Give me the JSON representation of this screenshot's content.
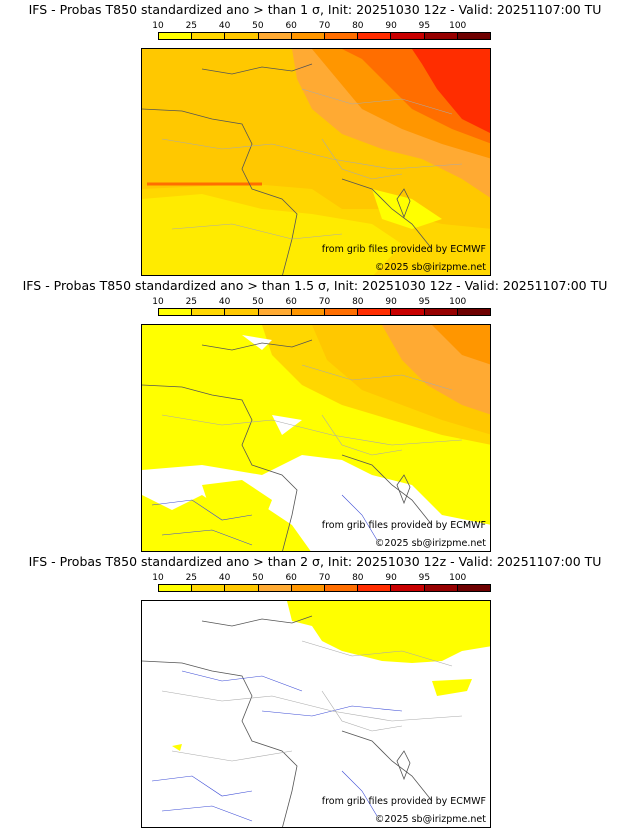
{
  "legend": {
    "ticks": [
      "10",
      "25",
      "40",
      "50",
      "60",
      "70",
      "80",
      "90",
      "95",
      "100"
    ],
    "colors": [
      "#ffff00",
      "#ffd700",
      "#ffc800",
      "#ffaa33",
      "#ff9600",
      "#ff6e00",
      "#ff2d00",
      "#c80000",
      "#960000",
      "#6e0000"
    ]
  },
  "panels": [
    {
      "title": "IFS - Probas T850  standardized ano > than 1 σ, Init: 20251030 12z - Valid: 20251107:00 TU",
      "source": "from grib files provided by ECMWF",
      "copyright": "©2025 sb@irizpme.net"
    },
    {
      "title": "IFS - Probas T850  standardized ano > than 1.5 σ, Init: 20251030 12z - Valid: 20251107:00 TU",
      "source": "from grib files provided by ECMWF",
      "copyright": "©2025 sb@irizpme.net"
    },
    {
      "title": "IFS - Probas T850  standardized ano > than 2 σ, Init: 20251030 12z - Valid: 20251107:00 TU",
      "source": "from grib files provided by ECMWF",
      "copyright": "©2025 sb@irizpme.net"
    }
  ]
}
